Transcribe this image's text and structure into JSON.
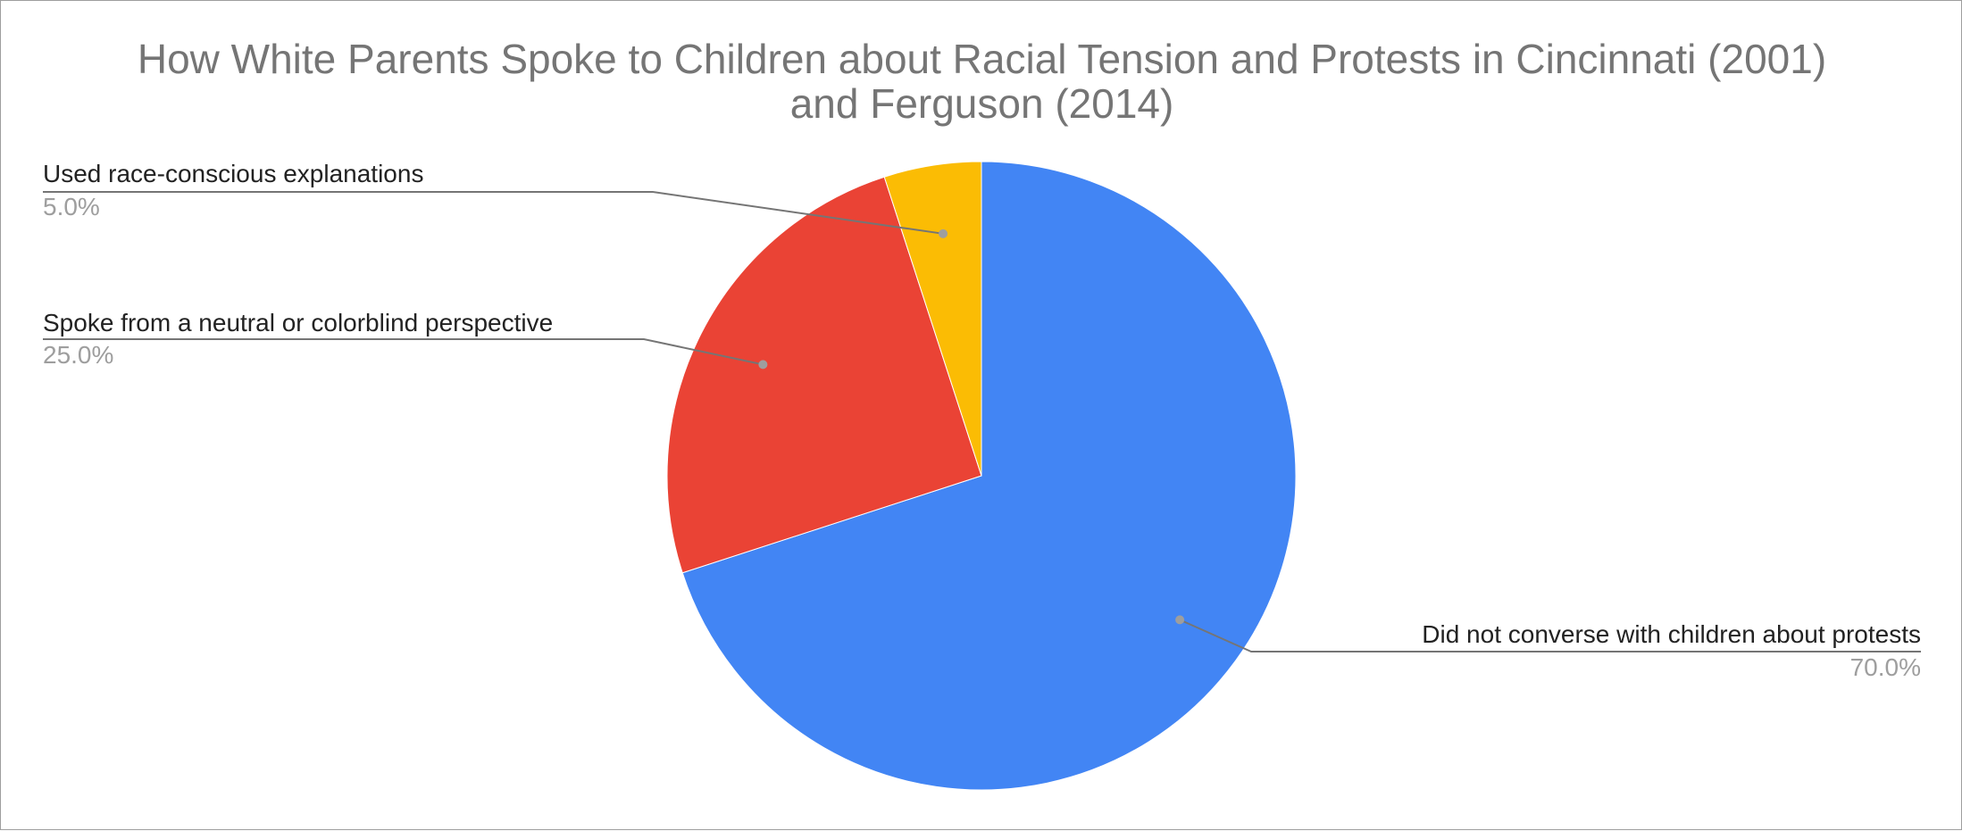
{
  "chart_data": {
    "type": "pie",
    "title_lines": [
      "How White Parents Spoke to Children about Racial Tension and Protests in Cincinnati (2001)",
      "and Ferguson (2014)"
    ],
    "slices": [
      {
        "label": "Did not converse with children about protests",
        "value": 70.0,
        "percent_label": "70.0%",
        "color": "#4285f4"
      },
      {
        "label": "Spoke from a neutral or colorblind perspective",
        "value": 25.0,
        "percent_label": "25.0%",
        "color": "#ea4335"
      },
      {
        "label": "Used race-conscious explanations",
        "value": 5.0,
        "percent_label": "5.0%",
        "color": "#fbbc04"
      }
    ],
    "start_angle": "12 o'clock, clockwise",
    "legend": "none (labels outside slices)"
  }
}
